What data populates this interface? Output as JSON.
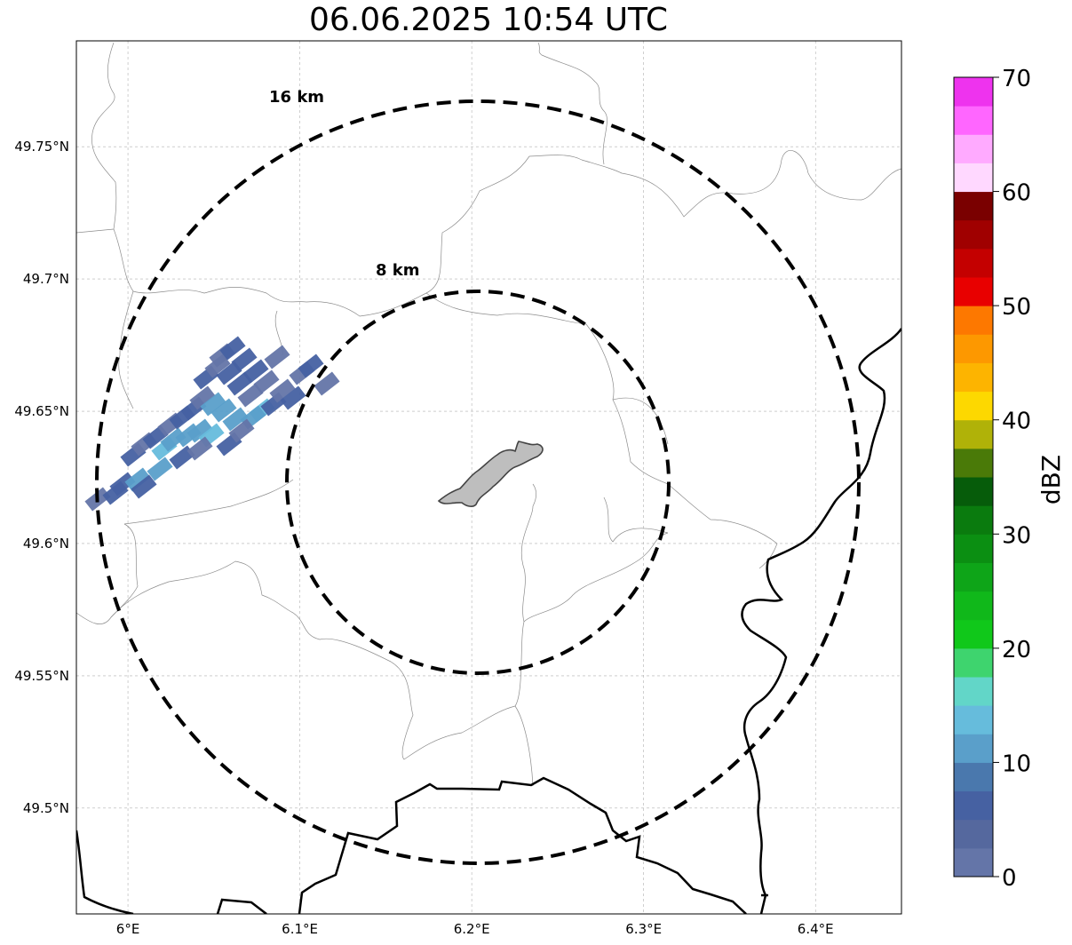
{
  "map": {
    "title": "06.06.2025 10:54 UTC",
    "x_ticks": [
      "6°E",
      "6.1°E",
      "6.2°E",
      "6.3°E",
      "6.4°E"
    ],
    "y_ticks": [
      "49.75°N",
      "49.7°N",
      "49.65°N",
      "49.6°N",
      "49.55°N",
      "49.5°N"
    ],
    "rings": [
      {
        "label": "8 km",
        "radius_km": 8
      },
      {
        "label": "16 km",
        "radius_km": 16
      }
    ],
    "center": {
      "lon": 6.2,
      "lat": 49.622
    },
    "extent": {
      "lon": [
        5.97,
        6.45
      ],
      "lat": [
        49.46,
        49.79
      ]
    },
    "grid": true
  },
  "colorbar": {
    "label": "dBZ",
    "ticks": [
      "0",
      "10",
      "20",
      "30",
      "40",
      "50",
      "60",
      "70"
    ],
    "vmin": 0,
    "vmax": 70,
    "step": 2.5,
    "colors": [
      "#6475a8",
      "#55689e",
      "#4661a2",
      "#4a78ad",
      "#5a9fca",
      "#66bcdc",
      "#62d6c8",
      "#3ed46e",
      "#10c81a",
      "#10b81a",
      "#0ea518",
      "#0b8f12",
      "#0a7b0e",
      "#065c0a",
      "#4a7a08",
      "#b0b208",
      "#fdd800",
      "#fdb400",
      "#fd9800",
      "#fd7800",
      "#e80000",
      "#c40000",
      "#a00000",
      "#7a0000",
      "#ffd8ff",
      "#ffaaff",
      "#ff66ff",
      "#ee33ee"
    ]
  },
  "echo_colors": {
    "light": "#6475a8",
    "mid": "#4661a2",
    "blue": "#5a9fca",
    "cyan": "#66bcdc"
  }
}
